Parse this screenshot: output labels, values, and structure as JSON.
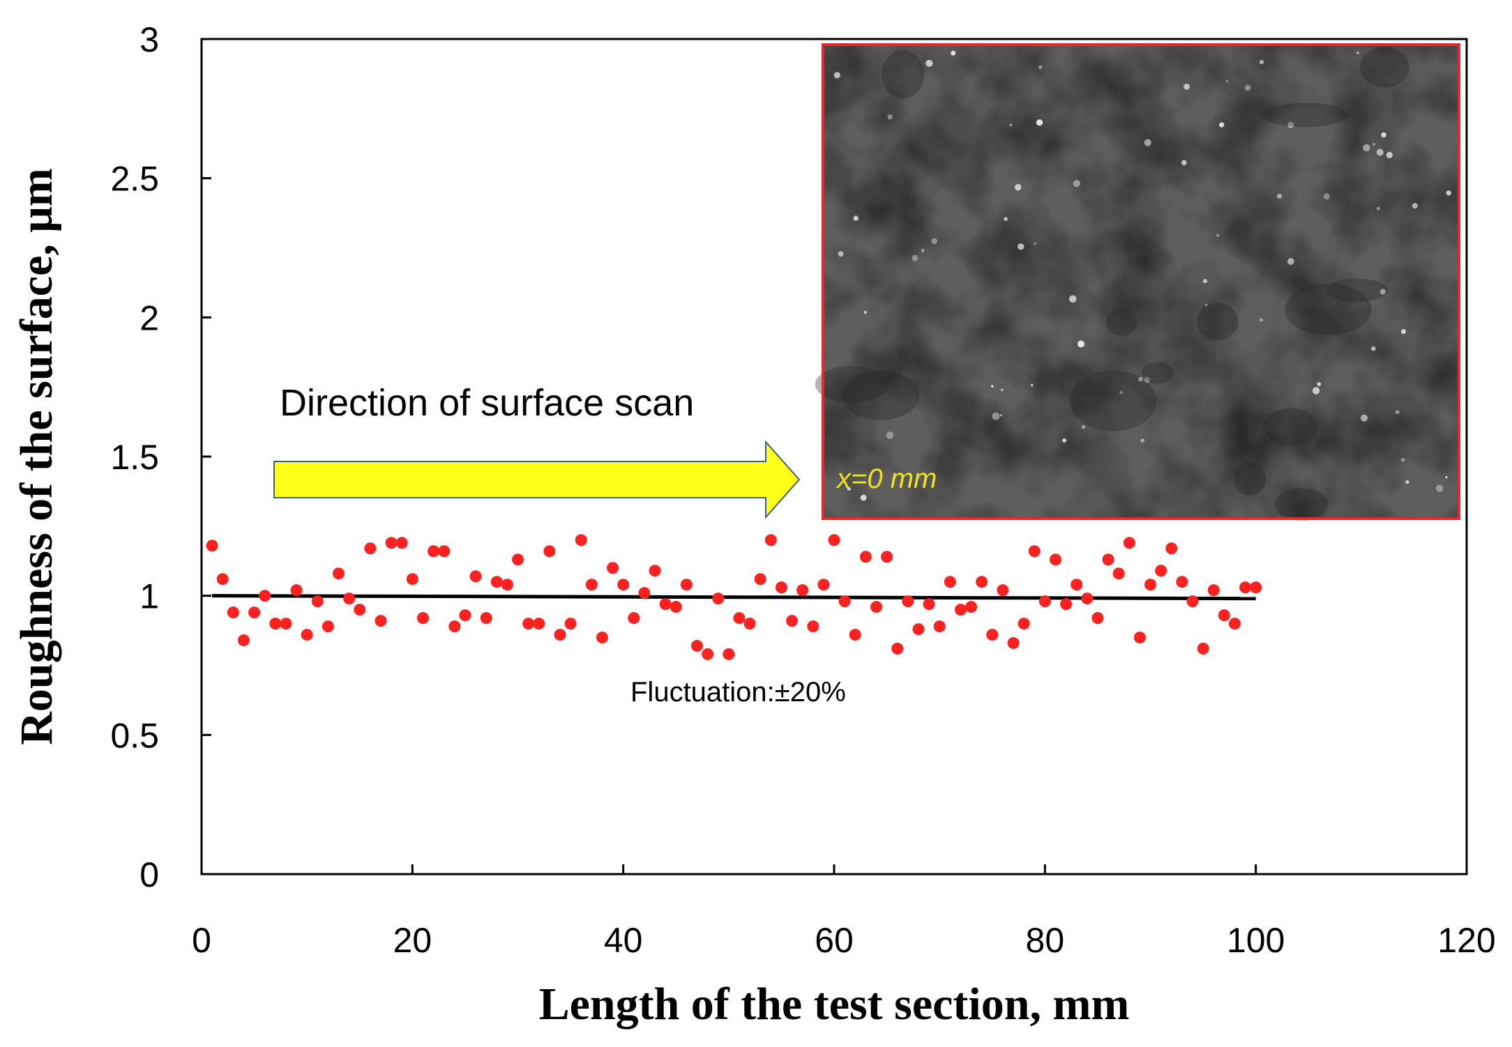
{
  "chart_data": {
    "type": "scatter",
    "xlabel": "Length of the test section, mm",
    "ylabel": "Roughness of the surface, μm",
    "xlim": [
      0,
      120
    ],
    "ylim": [
      0,
      3
    ],
    "xticks": [
      "0",
      "20",
      "40",
      "60",
      "80",
      "100",
      "120"
    ],
    "yticks": [
      "0",
      "0.5",
      "1",
      "1.5",
      "2",
      "2.5",
      "3"
    ],
    "grid": false,
    "series": [
      {
        "kind": "points",
        "color": "#ff2020",
        "x": [
          1,
          2,
          3,
          4,
          5,
          6,
          7,
          8,
          9,
          10,
          11,
          12,
          13,
          14,
          15,
          16,
          17,
          18,
          19,
          20,
          21,
          22,
          23,
          24,
          25,
          26,
          27,
          28,
          29,
          30,
          31,
          32,
          33,
          34,
          35,
          36,
          37,
          38,
          39,
          40,
          41,
          42,
          43,
          44,
          45,
          46,
          47,
          48,
          49,
          50,
          51,
          52,
          53,
          54,
          55,
          56,
          57,
          58,
          59,
          60,
          61,
          62,
          63,
          64,
          65,
          66,
          67,
          68,
          69,
          70,
          71,
          72,
          73,
          74,
          75,
          76,
          77,
          78,
          79,
          80,
          81,
          82,
          83,
          84,
          85,
          86,
          87,
          88,
          89,
          90,
          91,
          92,
          93,
          94,
          95,
          96,
          97,
          98,
          99,
          100
        ],
        "y": [
          1.18,
          1.06,
          0.94,
          0.84,
          0.94,
          1.0,
          0.9,
          0.9,
          1.02,
          0.86,
          0.98,
          0.89,
          1.08,
          0.99,
          0.95,
          1.17,
          0.91,
          1.19,
          1.19,
          1.06,
          0.92,
          1.16,
          1.16,
          0.89,
          0.93,
          1.07,
          0.92,
          1.05,
          1.04,
          1.13,
          0.9,
          0.9,
          1.16,
          0.86,
          0.9,
          1.2,
          1.04,
          0.85,
          1.1,
          1.04,
          0.92,
          1.01,
          1.09,
          0.97,
          0.96,
          1.04,
          0.82,
          0.79,
          0.99,
          0.79,
          0.92,
          0.9,
          1.06,
          1.2,
          1.03,
          0.91,
          1.02,
          0.89,
          1.04,
          1.2,
          0.98,
          0.86,
          1.14,
          0.96,
          1.14,
          0.81,
          0.98,
          0.88,
          0.97,
          0.89,
          1.05,
          0.95,
          0.96,
          1.05,
          0.86,
          1.02,
          0.83,
          0.9,
          1.16,
          0.98,
          1.13,
          0.97,
          1.04,
          0.99,
          0.92,
          1.13,
          1.08,
          1.19,
          0.85,
          1.04,
          1.09,
          1.17,
          1.05,
          0.98,
          0.81,
          1.02,
          0.93,
          0.9,
          1.03,
          1.03
        ]
      },
      {
        "kind": "line",
        "color": "#000000",
        "x": [
          1,
          100
        ],
        "y": [
          1.0,
          0.99
        ]
      }
    ],
    "annotations": {
      "arrow_label": "Direction of surface scan",
      "fluctuation": "Fluctuation:±20%",
      "inset_label": "x=0 mm"
    },
    "colors": {
      "arrow_fill": "#ffff1a",
      "arrow_stroke": "#3b5f8a",
      "inset_border": "#e8282a",
      "inset_label": "#f2e21b"
    }
  }
}
